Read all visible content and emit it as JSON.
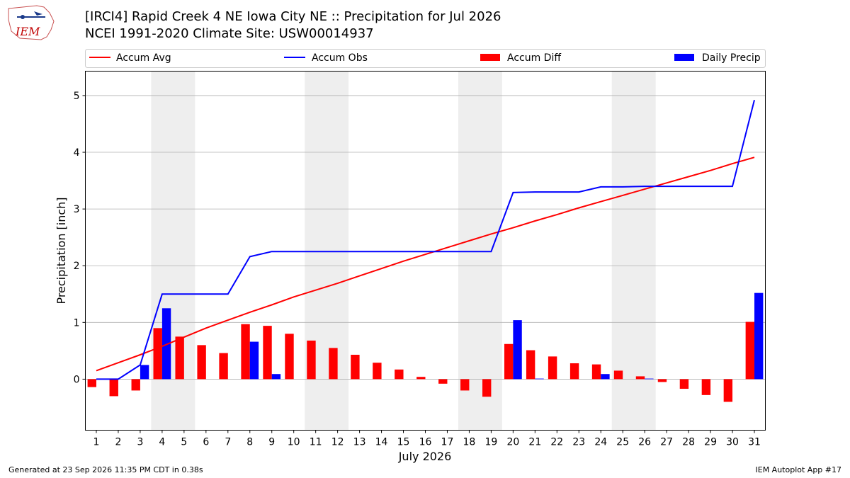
{
  "header": {
    "logo_text": "IEM",
    "title_line1": "[IRCI4] Rapid Creek 4 NE Iowa City NE :: Precipitation for Jul 2026",
    "title_line2": "NCEI 1991-2020 Climate Site: USW00014937"
  },
  "footer": {
    "left": "Generated at 23 Sep 2026 11:35 PM CDT in 0.38s",
    "right": "IEM Autoplot App #17"
  },
  "colors": {
    "avg": "#ff0000",
    "obs": "#0000ff",
    "diff": "#ff0000",
    "daily": "#0000ff",
    "weekend_shade": "#eeeeee",
    "grid": "#b0b0b0"
  },
  "chart_data": {
    "type": "bar",
    "xlabel": "July 2026",
    "ylabel": "Precipitation [inch]",
    "ylim": [
      -0.9,
      5.43
    ],
    "yticks": [
      0,
      1,
      2,
      3,
      4,
      5
    ],
    "grid": "horizontal",
    "legend_placement": "top (above plot)",
    "weekend_bands": [
      [
        4,
        5
      ],
      [
        11,
        12
      ],
      [
        18,
        19
      ],
      [
        25,
        26
      ]
    ],
    "x": [
      1,
      2,
      3,
      4,
      5,
      6,
      7,
      8,
      9,
      10,
      11,
      12,
      13,
      14,
      15,
      16,
      17,
      18,
      19,
      20,
      21,
      22,
      23,
      24,
      25,
      26,
      27,
      28,
      29,
      30,
      31
    ],
    "series": [
      {
        "name": "Accum Avg",
        "kind": "line",
        "values": [
          0.15,
          0.29,
          0.43,
          0.58,
          0.74,
          0.9,
          1.04,
          1.18,
          1.31,
          1.45,
          1.57,
          1.69,
          1.82,
          1.95,
          2.08,
          2.2,
          2.32,
          2.44,
          2.56,
          2.67,
          2.79,
          2.9,
          3.02,
          3.13,
          3.24,
          3.35,
          3.46,
          3.57,
          3.68,
          3.8,
          3.91
        ]
      },
      {
        "name": "Accum Obs",
        "kind": "line",
        "values": [
          0.0,
          0.0,
          0.25,
          1.5,
          1.5,
          1.5,
          1.5,
          2.16,
          2.25,
          2.25,
          2.25,
          2.25,
          2.25,
          2.25,
          2.25,
          2.25,
          2.25,
          2.25,
          2.25,
          3.29,
          3.3,
          3.3,
          3.3,
          3.39,
          3.39,
          3.4,
          3.4,
          3.4,
          3.4,
          3.4,
          4.92
        ]
      },
      {
        "name": "Accum Diff",
        "kind": "bar",
        "values": [
          -0.14,
          -0.3,
          -0.2,
          0.9,
          0.75,
          0.6,
          0.46,
          0.97,
          0.94,
          0.8,
          0.68,
          0.55,
          0.43,
          0.29,
          0.17,
          0.04,
          -0.08,
          -0.2,
          -0.31,
          0.62,
          0.51,
          0.4,
          0.28,
          0.26,
          0.15,
          0.05,
          -0.05,
          -0.17,
          -0.28,
          -0.4,
          1.01
        ]
      },
      {
        "name": "Daily Precip",
        "kind": "bar",
        "values": [
          0,
          0,
          0.25,
          1.25,
          0,
          0,
          0,
          0.66,
          0.09,
          0,
          0,
          0,
          0,
          0,
          0,
          0,
          0,
          0,
          0,
          1.04,
          0.01,
          0,
          0,
          0.09,
          0,
          0.01,
          0,
          0,
          0,
          0,
          1.52
        ]
      }
    ]
  }
}
